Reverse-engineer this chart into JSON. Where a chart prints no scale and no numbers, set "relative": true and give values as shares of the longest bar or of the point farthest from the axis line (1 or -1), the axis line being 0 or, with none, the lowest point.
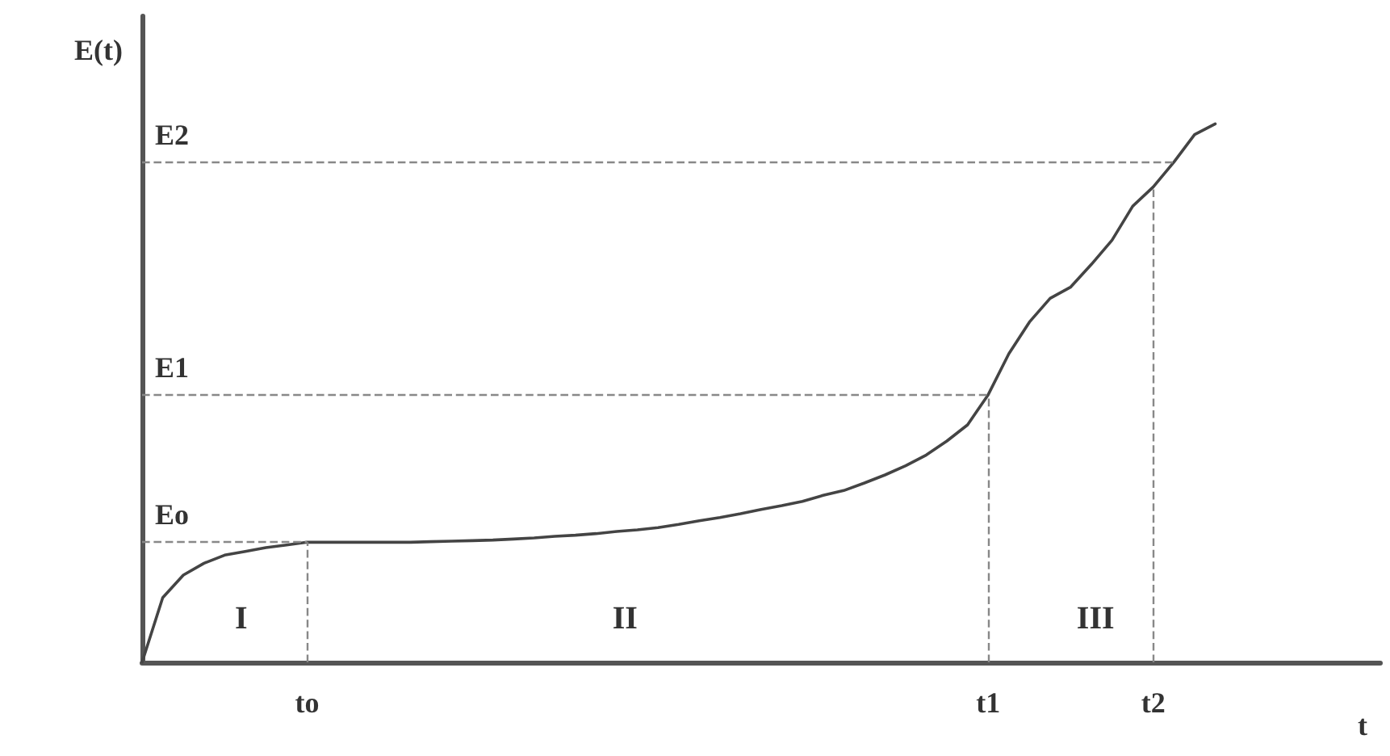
{
  "chart_data": {
    "type": "line",
    "relative": true,
    "xlabel": "t",
    "ylabel": "E(t)",
    "color": "#444444",
    "marker": "none",
    "line_style": "solid",
    "grid": false,
    "legend": false,
    "tick_labels": "x",
    "categories": [
      null,
      null,
      null,
      null,
      null,
      null,
      null,
      null,
      "to",
      null,
      null,
      null,
      null,
      null,
      null,
      null,
      null,
      null,
      null,
      null,
      null,
      null,
      null,
      null,
      null,
      null,
      null,
      null,
      null,
      null,
      null,
      null,
      null,
      null,
      null,
      null,
      null,
      null,
      null,
      null,
      null,
      "t1",
      null,
      null,
      null,
      null,
      null,
      null,
      null,
      "t2",
      null,
      null,
      null,
      null,
      null,
      null,
      null,
      null,
      null,
      null,
      null
    ],
    "values": [
      0,
      0.12,
      0.162,
      0.184,
      0.199,
      0.206,
      0.213,
      0.218,
      0.223,
      0.223,
      0.223,
      0.223,
      0.223,
      0.223,
      0.224,
      0.225,
      0.226,
      0.227,
      0.229,
      0.231,
      0.234,
      0.236,
      0.239,
      0.243,
      0.246,
      0.25,
      0.256,
      0.263,
      0.269,
      0.276,
      0.284,
      0.291,
      0.299,
      0.31,
      0.319,
      0.333,
      0.348,
      0.365,
      0.385,
      0.411,
      0.441,
      0.497,
      0.573,
      0.632,
      0.676,
      0.697,
      0.739,
      0.784,
      0.847,
      0.883,
      0.929,
      0.98,
      1,
      null,
      null,
      null,
      null,
      null,
      null,
      null,
      null
    ],
    "ref_lines": [
      {
        "axis": "y",
        "value": 0.223,
        "label": "Eo",
        "line_style": "dashed",
        "color": "#888888"
      },
      {
        "axis": "y",
        "value": 0.497,
        "label": "E1",
        "line_style": "dashed",
        "color": "#888888"
      },
      {
        "axis": "y",
        "value": 0.929,
        "label": "E2",
        "line_style": "dashed",
        "color": "#888888"
      },
      {
        "axis": "x",
        "value": "to",
        "line_style": "dashed",
        "color": "#888888"
      },
      {
        "axis": "x",
        "value": "t1",
        "line_style": "dashed",
        "color": "#888888"
      },
      {
        "axis": "x",
        "value": "t2",
        "line_style": "dashed",
        "color": "#888888"
      }
    ],
    "annotations": [
      "I",
      "II",
      "III"
    ]
  }
}
